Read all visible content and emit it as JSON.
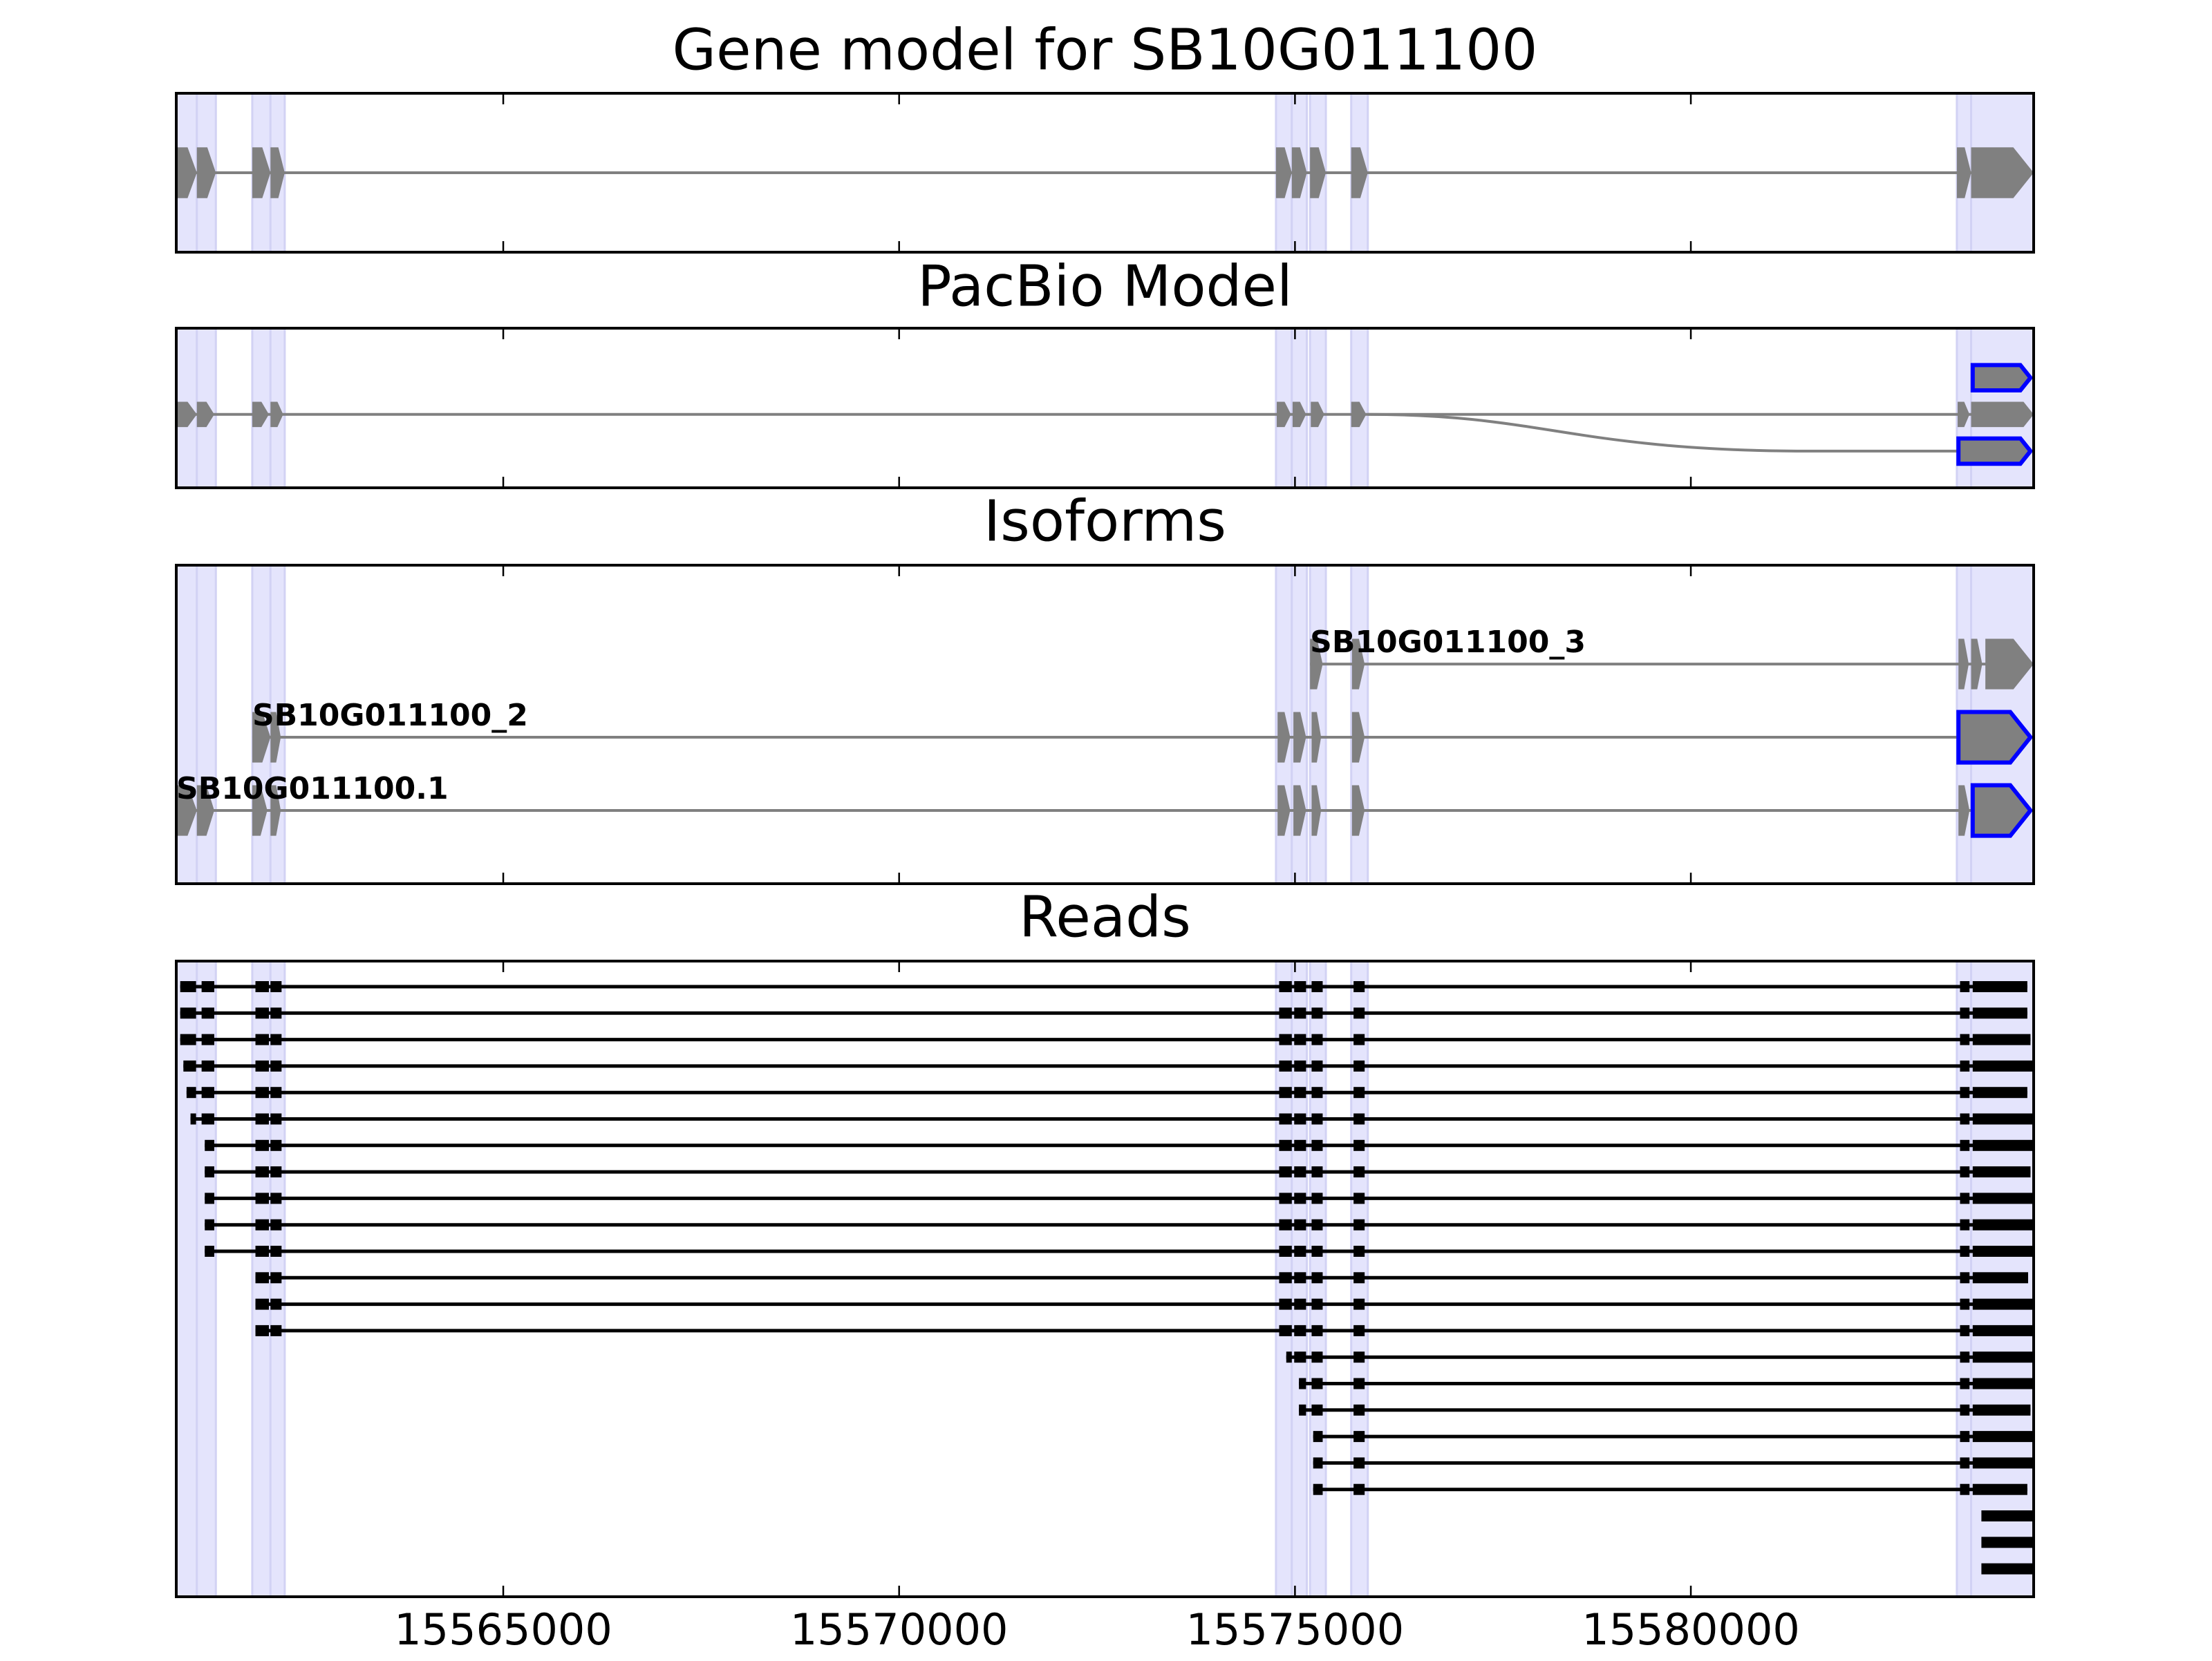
{
  "chart_data": [
    {
      "type": "gene_model",
      "title": "Gene model for SB10G011100",
      "xlim": [
        15560870,
        15584330
      ],
      "xticks": [
        15565000,
        15570000,
        15575000,
        15580000
      ],
      "color": "#808080",
      "outline_color": "#0000ff",
      "shade_color": "#e4e4fc",
      "tracks": [
        {
          "exons": [
            [
              15560870,
              15561130
            ],
            [
              15561130,
              15561370
            ],
            [
              15561830,
              15562060
            ],
            [
              15562060,
              15562240
            ],
            [
              15574760,
              15574960
            ],
            [
              15574960,
              15575150
            ],
            [
              15575190,
              15575390
            ],
            [
              15575710,
              15575920
            ],
            [
              15583360,
              15583540
            ],
            [
              15583540,
              15584330
            ]
          ]
        }
      ]
    },
    {
      "type": "gene_model",
      "title": "PacBio Model",
      "xlim": [
        15560870,
        15584330
      ],
      "xticks": [
        15565000,
        15570000,
        15575000,
        15580000
      ],
      "color": "#808080",
      "outline_color": "#0000ff",
      "shade_color": "#e4e4fc",
      "tracks": [
        {
          "exons": [
            [
              15583380,
              15584290
            ]
          ],
          "outlined": [
            0
          ],
          "branch_from": 15575920
        },
        {
          "exons": [
            [
              15560870,
              15561130
            ],
            [
              15561130,
              15561350
            ],
            [
              15561830,
              15562040
            ],
            [
              15562060,
              15562220
            ],
            [
              15574770,
              15574950
            ],
            [
              15574970,
              15575140
            ],
            [
              15575200,
              15575370
            ],
            [
              15575710,
              15575900
            ],
            [
              15583370,
              15583520
            ],
            [
              15583540,
              15584330
            ]
          ]
        },
        {
          "exons": [
            [
              15583560,
              15584290
            ]
          ],
          "outlined": [
            0
          ]
        }
      ]
    },
    {
      "type": "gene_model",
      "title": "Isoforms",
      "xlim": [
        15560870,
        15584330
      ],
      "xticks": [
        15565000,
        15570000,
        15575000,
        15580000
      ],
      "color": "#808080",
      "outline_color": "#0000ff",
      "shade_color": "#e4e4fc",
      "tracks": [
        {
          "name": "SB10G011100.1",
          "exons": [
            [
              15560870,
              15561130
            ],
            [
              15561130,
              15561350
            ],
            [
              15561830,
              15562020
            ],
            [
              15562060,
              15562190
            ],
            [
              15574780,
              15574940
            ],
            [
              15574980,
              15575140
            ],
            [
              15575210,
              15575330
            ],
            [
              15575720,
              15575880
            ],
            [
              15583380,
              15583520
            ],
            [
              15583560,
              15584290
            ]
          ],
          "outlined": [
            9
          ]
        },
        {
          "name": "SB10G011100_2",
          "exons": [
            [
              15561830,
              15562060
            ],
            [
              15562060,
              15562190
            ],
            [
              15574780,
              15574940
            ],
            [
              15574980,
              15575140
            ],
            [
              15575210,
              15575330
            ],
            [
              15575720,
              15575880
            ],
            [
              15583380,
              15584290
            ]
          ],
          "outlined": [
            6
          ]
        },
        {
          "name": "SB10G011100_3",
          "exons": [
            [
              15575190,
              15575350
            ],
            [
              15575720,
              15575880
            ],
            [
              15583380,
              15583510
            ],
            [
              15583540,
              15583680
            ],
            [
              15583720,
              15584330
            ]
          ]
        }
      ]
    },
    {
      "type": "reads",
      "title": "Reads",
      "xlim": [
        15560870,
        15584330
      ],
      "xticks": [
        15565000,
        15570000,
        15575000,
        15580000
      ],
      "color": "#000000",
      "shade_color": "#e4e4fc",
      "reads": [
        [
          [
            15560920,
            15561120
          ],
          [
            15561190,
            15561350
          ],
          [
            15561870,
            15562040
          ],
          [
            15562060,
            15562200
          ],
          [
            15574800,
            15574960
          ],
          [
            15574990,
            15575140
          ],
          [
            15575210,
            15575350
          ],
          [
            15575740,
            15575880
          ],
          [
            15583400,
            15583520
          ],
          [
            15583560,
            15584250
          ]
        ],
        [
          [
            15560920,
            15561120
          ],
          [
            15561190,
            15561350
          ],
          [
            15561870,
            15562040
          ],
          [
            15562060,
            15562200
          ],
          [
            15574800,
            15574960
          ],
          [
            15574990,
            15575140
          ],
          [
            15575210,
            15575350
          ],
          [
            15575740,
            15575880
          ],
          [
            15583400,
            15583520
          ],
          [
            15583560,
            15584250
          ]
        ],
        [
          [
            15560920,
            15561120
          ],
          [
            15561190,
            15561350
          ],
          [
            15561870,
            15562040
          ],
          [
            15562060,
            15562200
          ],
          [
            15574800,
            15574960
          ],
          [
            15574990,
            15575140
          ],
          [
            15575210,
            15575350
          ],
          [
            15575740,
            15575880
          ],
          [
            15583400,
            15583520
          ],
          [
            15583560,
            15584290
          ]
        ],
        [
          [
            15560960,
            15561120
          ],
          [
            15561190,
            15561350
          ],
          [
            15561870,
            15562040
          ],
          [
            15562060,
            15562200
          ],
          [
            15574800,
            15574960
          ],
          [
            15574990,
            15575140
          ],
          [
            15575210,
            15575350
          ],
          [
            15575740,
            15575880
          ],
          [
            15583400,
            15583520
          ],
          [
            15583560,
            15584330
          ]
        ],
        [
          [
            15561000,
            15561120
          ],
          [
            15561190,
            15561350
          ],
          [
            15561870,
            15562040
          ],
          [
            15562060,
            15562200
          ],
          [
            15574800,
            15574960
          ],
          [
            15574990,
            15575140
          ],
          [
            15575210,
            15575350
          ],
          [
            15575740,
            15575880
          ],
          [
            15583400,
            15583520
          ],
          [
            15583560,
            15584250
          ]
        ],
        [
          [
            15561050,
            15561120
          ],
          [
            15561190,
            15561350
          ],
          [
            15561870,
            15562040
          ],
          [
            15562060,
            15562200
          ],
          [
            15574800,
            15574960
          ],
          [
            15574990,
            15575140
          ],
          [
            15575210,
            15575350
          ],
          [
            15575740,
            15575880
          ],
          [
            15583400,
            15583520
          ],
          [
            15583560,
            15584330
          ]
        ],
        [
          [
            15561230,
            15561350
          ],
          [
            15561870,
            15562040
          ],
          [
            15562060,
            15562200
          ],
          [
            15574800,
            15574960
          ],
          [
            15574990,
            15575140
          ],
          [
            15575210,
            15575350
          ],
          [
            15575740,
            15575880
          ],
          [
            15583400,
            15583520
          ],
          [
            15583560,
            15584330
          ]
        ],
        [
          [
            15561230,
            15561350
          ],
          [
            15561870,
            15562040
          ],
          [
            15562060,
            15562200
          ],
          [
            15574800,
            15574960
          ],
          [
            15574990,
            15575140
          ],
          [
            15575210,
            15575350
          ],
          [
            15575740,
            15575880
          ],
          [
            15583400,
            15583520
          ],
          [
            15583560,
            15584290
          ]
        ],
        [
          [
            15561230,
            15561350
          ],
          [
            15561870,
            15562040
          ],
          [
            15562060,
            15562200
          ],
          [
            15574800,
            15574960
          ],
          [
            15574990,
            15575140
          ],
          [
            15575210,
            15575350
          ],
          [
            15575740,
            15575880
          ],
          [
            15583400,
            15583520
          ],
          [
            15583560,
            15584330
          ]
        ],
        [
          [
            15561230,
            15561350
          ],
          [
            15561870,
            15562040
          ],
          [
            15562060,
            15562200
          ],
          [
            15574800,
            15574960
          ],
          [
            15574990,
            15575140
          ],
          [
            15575210,
            15575350
          ],
          [
            15575740,
            15575880
          ],
          [
            15583400,
            15583520
          ],
          [
            15583560,
            15584330
          ]
        ],
        [
          [
            15561230,
            15561350
          ],
          [
            15561870,
            15562040
          ],
          [
            15562060,
            15562200
          ],
          [
            15574800,
            15574960
          ],
          [
            15574990,
            15575140
          ],
          [
            15575210,
            15575350
          ],
          [
            15575740,
            15575880
          ],
          [
            15583400,
            15583520
          ],
          [
            15583560,
            15584330
          ]
        ],
        [
          [
            15561870,
            15562040
          ],
          [
            15562060,
            15562200
          ],
          [
            15574800,
            15574960
          ],
          [
            15574990,
            15575140
          ],
          [
            15575210,
            15575350
          ],
          [
            15575740,
            15575880
          ],
          [
            15583400,
            15583520
          ],
          [
            15583560,
            15584260
          ]
        ],
        [
          [
            15561870,
            15562040
          ],
          [
            15562060,
            15562200
          ],
          [
            15574800,
            15574960
          ],
          [
            15574990,
            15575140
          ],
          [
            15575210,
            15575350
          ],
          [
            15575740,
            15575880
          ],
          [
            15583400,
            15583520
          ],
          [
            15583560,
            15584330
          ]
        ],
        [
          [
            15561870,
            15562040
          ],
          [
            15562060,
            15562200
          ],
          [
            15574800,
            15574960
          ],
          [
            15574990,
            15575140
          ],
          [
            15575210,
            15575350
          ],
          [
            15575740,
            15575880
          ],
          [
            15583400,
            15583520
          ],
          [
            15583560,
            15584330
          ]
        ],
        [
          [
            15574890,
            15574960
          ],
          [
            15574990,
            15575140
          ],
          [
            15575210,
            15575350
          ],
          [
            15575740,
            15575880
          ],
          [
            15583400,
            15583520
          ],
          [
            15583560,
            15584330
          ]
        ],
        [
          [
            15575050,
            15575140
          ],
          [
            15575210,
            15575350
          ],
          [
            15575740,
            15575880
          ],
          [
            15583400,
            15583520
          ],
          [
            15583560,
            15584330
          ]
        ],
        [
          [
            15575050,
            15575140
          ],
          [
            15575210,
            15575350
          ],
          [
            15575740,
            15575880
          ],
          [
            15583400,
            15583520
          ],
          [
            15583560,
            15584290
          ]
        ],
        [
          [
            15575230,
            15575350
          ],
          [
            15575740,
            15575880
          ],
          [
            15583400,
            15583520
          ],
          [
            15583560,
            15584330
          ]
        ],
        [
          [
            15575230,
            15575350
          ],
          [
            15575740,
            15575880
          ],
          [
            15583400,
            15583520
          ],
          [
            15583560,
            15584330
          ]
        ],
        [
          [
            15575230,
            15575350
          ],
          [
            15575740,
            15575880
          ],
          [
            15583400,
            15583520
          ],
          [
            15583560,
            15584250
          ]
        ],
        [
          [
            15583670,
            15584330
          ]
        ],
        [
          [
            15583670,
            15584330
          ]
        ],
        [
          [
            15583670,
            15584330
          ]
        ]
      ]
    }
  ]
}
